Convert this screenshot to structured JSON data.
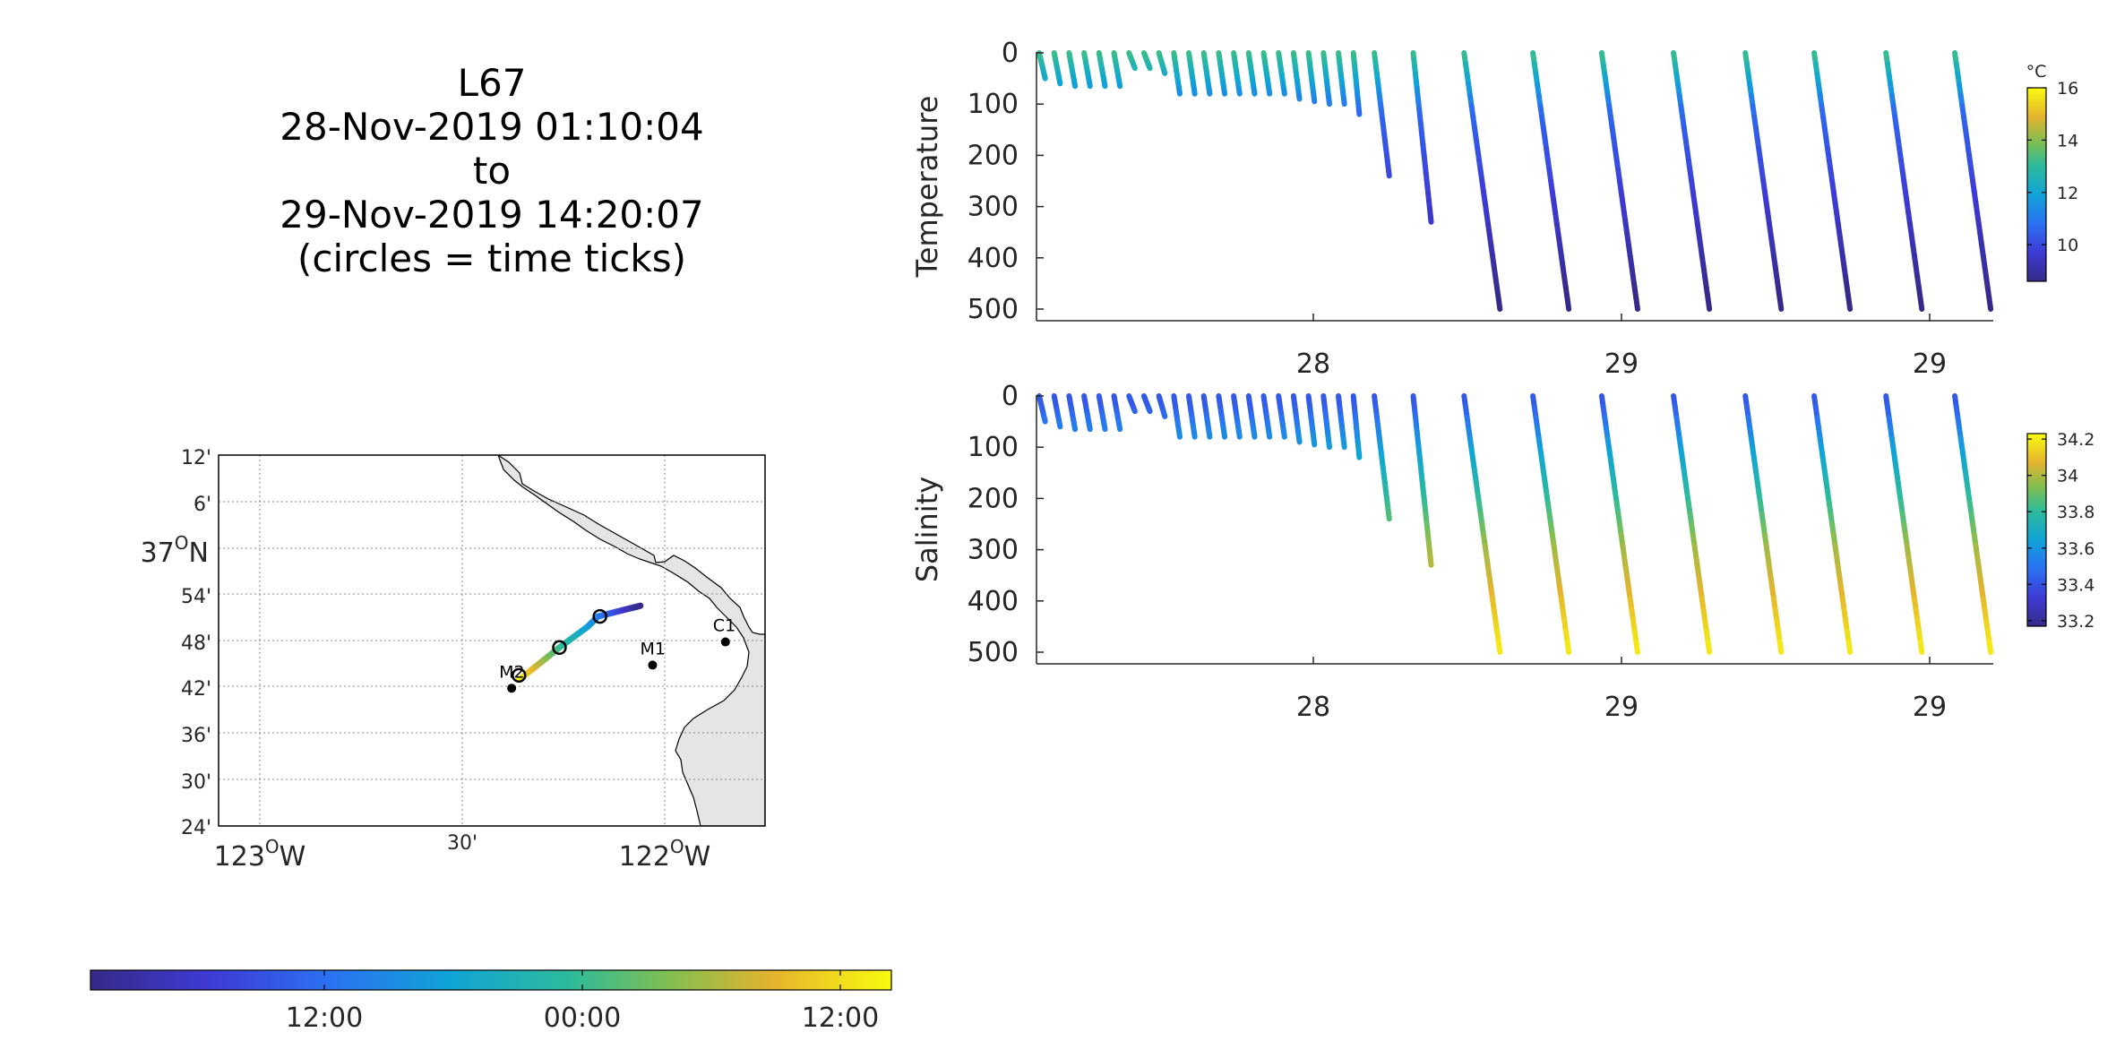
{
  "title": {
    "lines": [
      "L67",
      "28-Nov-2019 01:10:04",
      "to",
      "29-Nov-2019 14:20:07",
      "(circles = time ticks)"
    ]
  },
  "map": {
    "lat_ticks": [
      "12'",
      "6'",
      "37°N",
      "54'",
      "48'",
      "42'",
      "36'",
      "30'",
      "24'"
    ],
    "lat_main": "37",
    "lat_main_unit": "N",
    "lon_ticks_major": [
      {
        "deg": "123",
        "unit": "W"
      },
      {
        "deg": "122",
        "unit": "W"
      }
    ],
    "lon_tick_minor": "30'",
    "stations": [
      {
        "name": "M2",
        "lon": -122.378,
        "lat": 36.697
      },
      {
        "name": "M1",
        "lon": -122.03,
        "lat": 36.747
      },
      {
        "name": "C1",
        "lon": -121.85,
        "lat": 36.797
      }
    ],
    "track": [
      {
        "lon": -122.36,
        "lat": 36.715,
        "t": 1.0
      },
      {
        "lon": -122.26,
        "lat": 36.785,
        "t": 0.62
      },
      {
        "lon": -122.19,
        "lat": 36.83,
        "t": 0.45
      },
      {
        "lon": -122.165,
        "lat": 36.852,
        "t": 0.35
      },
      {
        "lon": -122.06,
        "lat": 36.875,
        "t": 0.0
      }
    ],
    "time_circles": [
      {
        "lon": -122.36,
        "lat": 36.725
      },
      {
        "lon": -122.26,
        "lat": 36.785
      },
      {
        "lon": -122.16,
        "lat": 36.852
      }
    ],
    "land_color": "#e5e5e5"
  },
  "time_colorbar": {
    "labels": [
      "12:00",
      "00:00",
      "12:00"
    ]
  },
  "chart_data": [
    {
      "type": "scatter",
      "ylabel": "Temperature",
      "ylim": [
        500,
        0
      ],
      "yticks": [
        "0",
        "100",
        "200",
        "300",
        "400",
        "500"
      ],
      "xticks": [
        "28",
        "29",
        "29"
      ],
      "colorbar": {
        "unit": "°C",
        "ticks": [
          "16",
          "14",
          "12",
          "10"
        ],
        "range": [
          8.6,
          16
        ]
      },
      "series": [
        {
          "values": [
            [
              0,
              0
            ],
            [
              0.02,
              50
            ]
          ]
        },
        {
          "values": [
            [
              0.05,
              0
            ],
            [
              0.07,
              60
            ]
          ]
        },
        {
          "values": [
            [
              0.1,
              0
            ],
            [
              0.12,
              65
            ]
          ]
        },
        {
          "values": [
            [
              0.15,
              0
            ],
            [
              0.17,
              65
            ]
          ]
        },
        {
          "values": [
            [
              0.2,
              0
            ],
            [
              0.22,
              65
            ]
          ]
        },
        {
          "values": [
            [
              0.25,
              0
            ],
            [
              0.27,
              65
            ]
          ]
        },
        {
          "values": [
            [
              0.3,
              0
            ],
            [
              0.32,
              30
            ]
          ]
        },
        {
          "values": [
            [
              0.35,
              0
            ],
            [
              0.37,
              30
            ]
          ]
        },
        {
          "values": [
            [
              0.4,
              0
            ],
            [
              0.42,
              40
            ]
          ]
        },
        {
          "values": [
            [
              0.45,
              0
            ],
            [
              0.47,
              80
            ]
          ]
        },
        {
          "values": [
            [
              0.5,
              0
            ],
            [
              0.52,
              80
            ]
          ]
        },
        {
          "values": [
            [
              0.55,
              0
            ],
            [
              0.57,
              80
            ]
          ]
        },
        {
          "values": [
            [
              0.6,
              0
            ],
            [
              0.62,
              80
            ]
          ]
        },
        {
          "values": [
            [
              0.65,
              0
            ],
            [
              0.67,
              80
            ]
          ]
        },
        {
          "values": [
            [
              0.7,
              0
            ],
            [
              0.72,
              80
            ]
          ]
        },
        {
          "values": [
            [
              0.75,
              0
            ],
            [
              0.77,
              80
            ]
          ]
        },
        {
          "values": [
            [
              0.8,
              0
            ],
            [
              0.82,
              80
            ]
          ]
        },
        {
          "values": [
            [
              0.85,
              0
            ],
            [
              0.87,
              90
            ]
          ]
        },
        {
          "values": [
            [
              0.9,
              0
            ],
            [
              0.92,
              95
            ]
          ]
        },
        {
          "values": [
            [
              0.95,
              0
            ],
            [
              0.97,
              100
            ]
          ]
        },
        {
          "values": [
            [
              1.0,
              0
            ],
            [
              1.02,
              100
            ]
          ]
        },
        {
          "values": [
            [
              1.05,
              0
            ],
            [
              1.07,
              120
            ]
          ]
        },
        {
          "values": [
            [
              1.12,
              0
            ],
            [
              1.17,
              240
            ]
          ]
        },
        {
          "values": [
            [
              1.25,
              0
            ],
            [
              1.31,
              330
            ]
          ]
        },
        {
          "values": [
            [
              1.42,
              0
            ],
            [
              1.54,
              500
            ]
          ]
        },
        {
          "values": [
            [
              1.65,
              0
            ],
            [
              1.77,
              500
            ]
          ]
        },
        {
          "values": [
            [
              1.88,
              0
            ],
            [
              2.0,
              500
            ]
          ]
        },
        {
          "values": [
            [
              2.12,
              0
            ],
            [
              2.24,
              500
            ]
          ]
        },
        {
          "values": [
            [
              2.36,
              0
            ],
            [
              2.48,
              500
            ]
          ]
        },
        {
          "values": [
            [
              2.59,
              0
            ],
            [
              2.71,
              500
            ]
          ]
        },
        {
          "values": [
            [
              2.83,
              0
            ],
            [
              2.95,
              500
            ]
          ]
        },
        {
          "values": [
            [
              3.06,
              0
            ],
            [
              3.18,
              500
            ]
          ]
        }
      ]
    },
    {
      "type": "scatter",
      "ylabel": "Salinity",
      "ylim": [
        500,
        0
      ],
      "yticks": [
        "0",
        "100",
        "200",
        "300",
        "400",
        "500"
      ],
      "xticks": [
        "28",
        "29",
        "29"
      ],
      "colorbar": {
        "ticks": [
          "34.2",
          "34",
          "33.8",
          "33.6",
          "33.4",
          "33.2"
        ],
        "range": [
          33.17,
          34.23
        ]
      },
      "series": []
    }
  ]
}
